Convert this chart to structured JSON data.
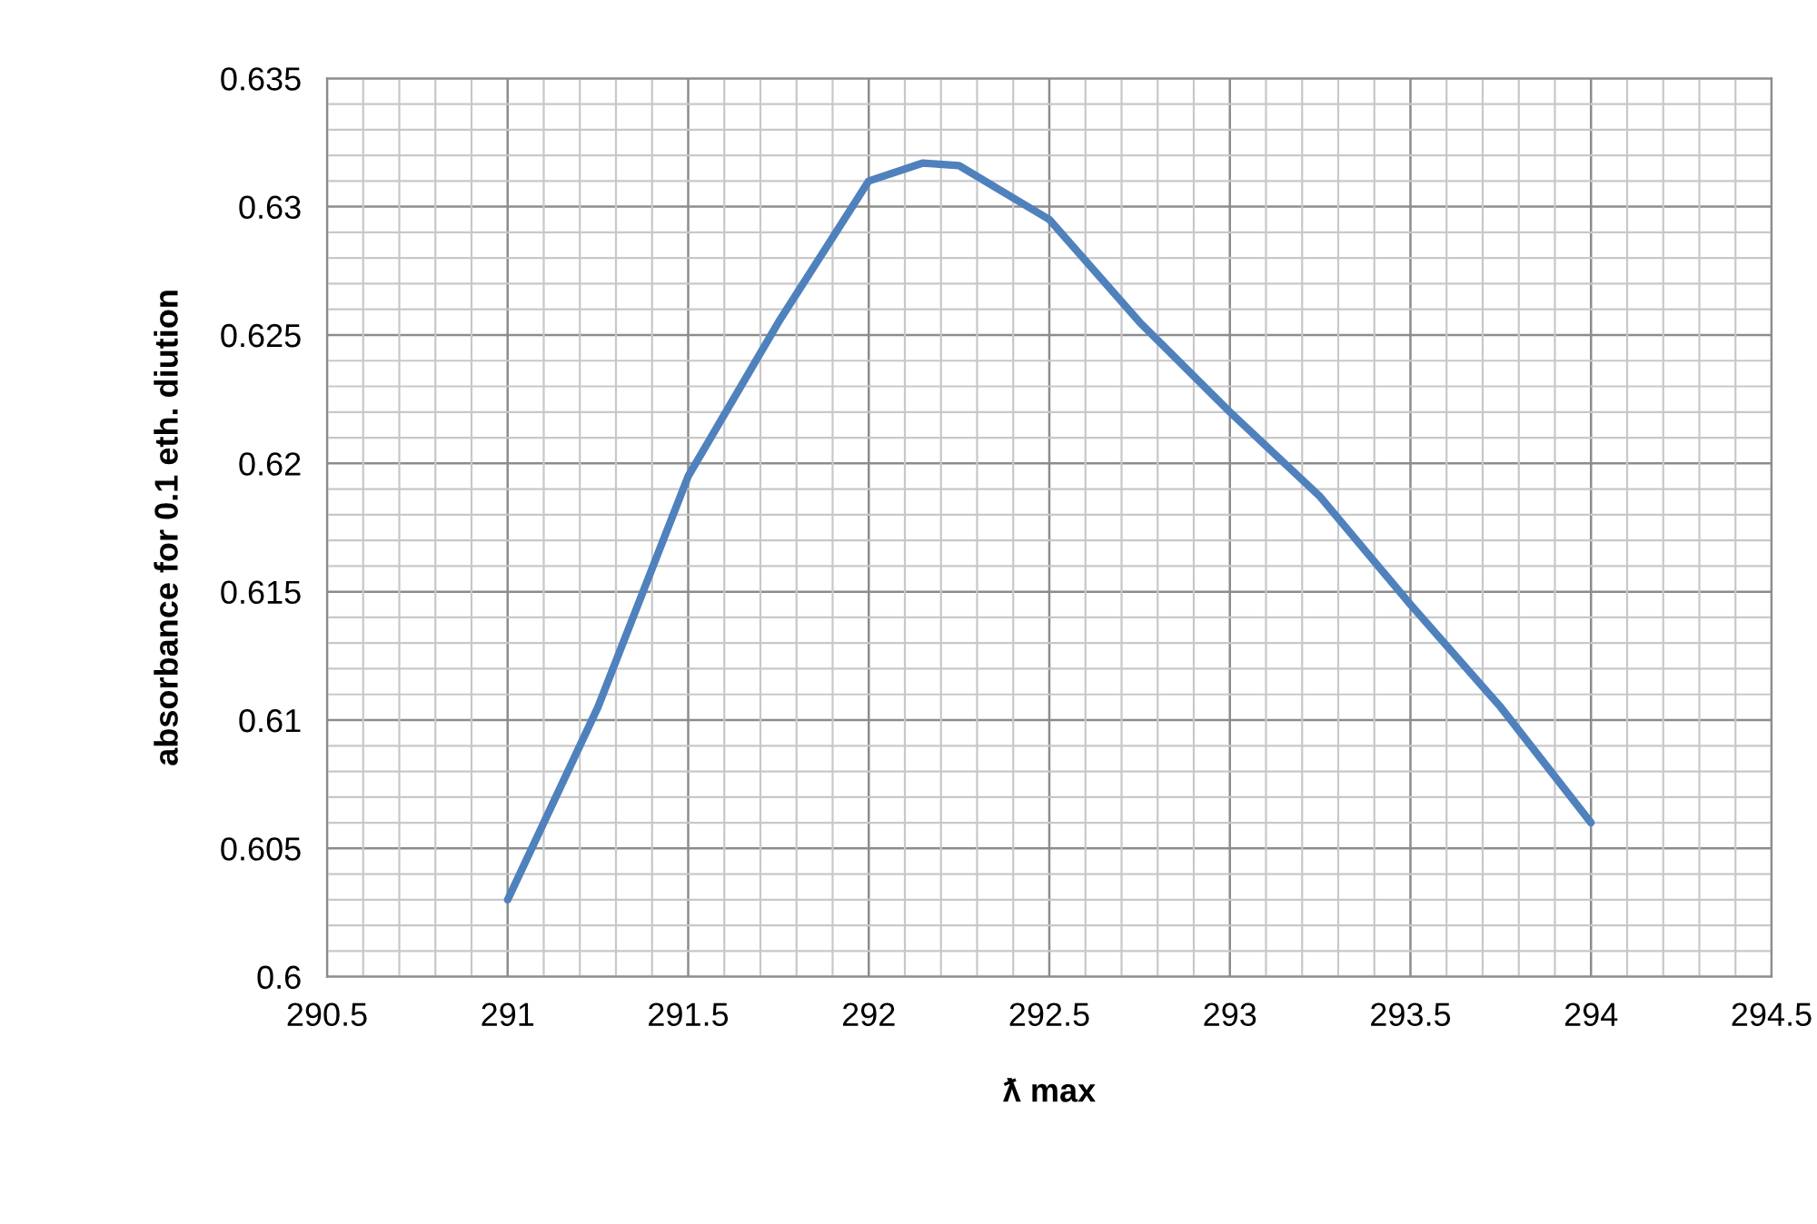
{
  "chart_data": {
    "type": "line",
    "xlabel": "ƛ max",
    "ylabel": "absorbance for 0.1 eth. diution",
    "x": [
      291,
      291.25,
      291.5,
      291.75,
      292,
      292.15,
      292.25,
      292.5,
      292.75,
      293,
      293.25,
      293.5,
      293.75,
      294
    ],
    "series": [
      {
        "color": "#4f81bd",
        "values": [
          0.603,
          0.6105,
          0.6195,
          0.6255,
          0.631,
          0.6317,
          0.6316,
          0.6295,
          0.6255,
          0.622,
          0.6187,
          0.6145,
          0.6105,
          0.606
        ]
      }
    ],
    "xlim": [
      290.5,
      294.5
    ],
    "xticks": [
      290.5,
      291,
      291.5,
      292,
      292.5,
      293,
      293.5,
      294,
      294.5
    ],
    "ylim": [
      0.6,
      0.635
    ],
    "yticks": [
      {
        "value": 0.6,
        "label": "0.6"
      },
      0.605,
      {
        "value": 0.61,
        "label": "0.61"
      },
      0.615,
      {
        "value": 0.62,
        "label": "0.62"
      },
      0.625,
      {
        "value": 0.63,
        "label": "0.63"
      },
      0.635
    ],
    "grid": true,
    "marker": "none",
    "line_style": "solid"
  }
}
